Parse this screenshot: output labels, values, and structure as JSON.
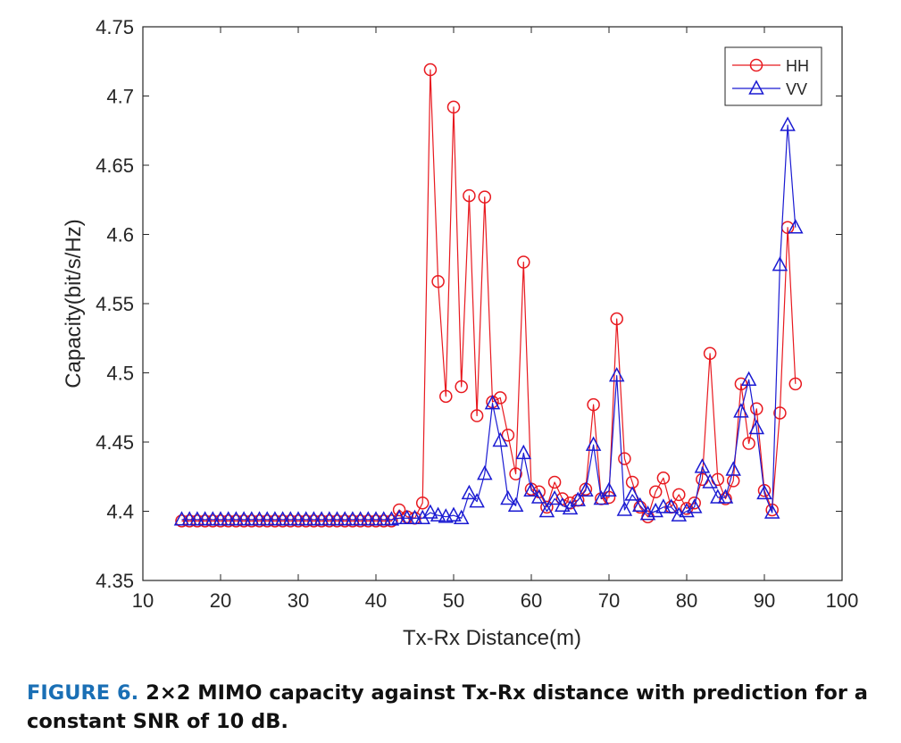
{
  "caption": {
    "label": "FIGURE 6.",
    "text": "2×2 MIMO capacity against Tx-Rx distance with prediction for a constant SNR of 10 dB."
  },
  "chart_data": {
    "type": "line",
    "title": "",
    "xlabel": "Tx-Rx Distance(m)",
    "ylabel": "Capacity(bit/s/Hz)",
    "xlim": [
      10,
      100
    ],
    "ylim": [
      4.35,
      4.75
    ],
    "xticks": [
      10,
      20,
      30,
      40,
      50,
      60,
      70,
      80,
      90,
      100
    ],
    "yticks": [
      4.35,
      4.4,
      4.45,
      4.5,
      4.55,
      4.6,
      4.65,
      4.7,
      4.75
    ],
    "ytick_labels": [
      "4.35",
      "4.4",
      "4.45",
      "4.5",
      "4.55",
      "4.6",
      "4.65",
      "4.7",
      "4.75"
    ],
    "grid": false,
    "legend_position": "top-right",
    "x": [
      15,
      16,
      17,
      18,
      19,
      20,
      21,
      22,
      23,
      24,
      25,
      26,
      27,
      28,
      29,
      30,
      31,
      32,
      33,
      34,
      35,
      36,
      37,
      38,
      39,
      40,
      41,
      42,
      43,
      44,
      45,
      46,
      47,
      48,
      49,
      50,
      51,
      52,
      53,
      54,
      55,
      56,
      57,
      58,
      59,
      60,
      61,
      62,
      63,
      64,
      65,
      66,
      67,
      68,
      69,
      70,
      71,
      72,
      73,
      74,
      75,
      76,
      77,
      78,
      79,
      80,
      81,
      82,
      83,
      84,
      85,
      86,
      87,
      88,
      89,
      90,
      91,
      92,
      93,
      94
    ],
    "series": [
      {
        "name": "HH",
        "color": "#e8191f",
        "marker": "circle",
        "values": [
          4.393,
          4.393,
          4.393,
          4.393,
          4.393,
          4.393,
          4.393,
          4.393,
          4.393,
          4.393,
          4.393,
          4.393,
          4.393,
          4.393,
          4.393,
          4.393,
          4.393,
          4.393,
          4.393,
          4.393,
          4.393,
          4.393,
          4.393,
          4.393,
          4.393,
          4.393,
          4.393,
          4.393,
          4.401,
          4.396,
          4.395,
          4.406,
          4.719,
          4.566,
          4.483,
          4.692,
          4.49,
          4.628,
          4.469,
          4.627,
          4.479,
          4.482,
          4.455,
          4.427,
          4.58,
          4.416,
          4.414,
          4.403,
          4.421,
          4.409,
          4.406,
          4.408,
          4.416,
          4.477,
          4.409,
          4.41,
          4.539,
          4.438,
          4.421,
          4.403,
          4.396,
          4.414,
          4.424,
          4.403,
          4.412,
          4.402,
          4.406,
          4.423,
          4.514,
          4.423,
          4.409,
          4.422,
          4.492,
          4.449,
          4.474,
          4.415,
          4.401,
          4.471,
          4.605,
          4.492
        ]
      },
      {
        "name": "VV",
        "color": "#1a1ad2",
        "marker": "triangle",
        "values": [
          4.394,
          4.394,
          4.394,
          4.394,
          4.394,
          4.394,
          4.394,
          4.394,
          4.394,
          4.394,
          4.394,
          4.394,
          4.394,
          4.394,
          4.394,
          4.394,
          4.394,
          4.394,
          4.394,
          4.394,
          4.394,
          4.394,
          4.394,
          4.394,
          4.394,
          4.394,
          4.394,
          4.394,
          4.395,
          4.395,
          4.395,
          4.395,
          4.399,
          4.397,
          4.396,
          4.397,
          4.395,
          4.413,
          4.407,
          4.427,
          4.478,
          4.451,
          4.409,
          4.404,
          4.442,
          4.415,
          4.41,
          4.4,
          4.409,
          4.404,
          4.402,
          4.408,
          4.415,
          4.448,
          4.409,
          4.415,
          4.498,
          4.401,
          4.412,
          4.404,
          4.398,
          4.4,
          4.403,
          4.403,
          4.397,
          4.4,
          4.403,
          4.432,
          4.421,
          4.41,
          4.41,
          4.43,
          4.472,
          4.495,
          4.46,
          4.413,
          4.399,
          4.578,
          4.679,
          4.605
        ]
      }
    ]
  }
}
